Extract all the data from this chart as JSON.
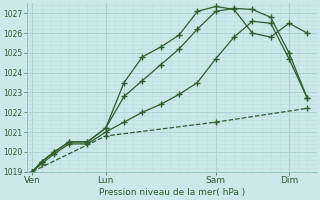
{
  "bg_color": "#cce8e8",
  "grid_major_color": "#aacfcf",
  "grid_minor_color": "#bbdddd",
  "line_color": "#2d5e2d",
  "text_color": "#2d5e2d",
  "xlabel_text": "Pression niveau de la mer( hPa )",
  "ylim": [
    1019.0,
    1027.5
  ],
  "yticks": [
    1019,
    1020,
    1021,
    1022,
    1023,
    1024,
    1025,
    1026,
    1027
  ],
  "xtick_labels": [
    "Ven",
    "Lun",
    "Sam",
    "Dim"
  ],
  "xtick_positions": [
    0,
    4,
    10,
    14
  ],
  "xlim": [
    -0.3,
    15.5
  ],
  "series": [
    {
      "x": [
        0,
        0.5,
        1.2,
        2,
        3,
        4,
        5,
        6,
        7,
        8,
        9,
        10,
        11,
        12,
        13,
        14,
        15
      ],
      "y": [
        1019.0,
        1019.5,
        1020.0,
        1020.5,
        1020.5,
        1021.2,
        1023.5,
        1024.8,
        1025.3,
        1025.9,
        1027.1,
        1027.35,
        1027.2,
        1026.0,
        1025.8,
        1026.5,
        1026.0
      ],
      "linestyle": "-",
      "marker": "+"
    },
    {
      "x": [
        0,
        0.5,
        1.2,
        2,
        3,
        4,
        5,
        6,
        7,
        8,
        9,
        10,
        11,
        12,
        13,
        14,
        15
      ],
      "y": [
        1019.0,
        1019.5,
        1020.0,
        1020.5,
        1020.5,
        1021.2,
        1022.8,
        1023.6,
        1024.4,
        1025.2,
        1026.2,
        1027.1,
        1027.25,
        1027.2,
        1026.8,
        1025.0,
        1022.7
      ],
      "linestyle": "-",
      "marker": "+"
    },
    {
      "x": [
        0,
        0.5,
        1.2,
        2,
        3,
        4,
        5,
        6,
        7,
        8,
        9,
        10,
        11,
        12,
        13,
        14,
        15
      ],
      "y": [
        1019.0,
        1019.4,
        1019.9,
        1020.4,
        1020.4,
        1021.0,
        1021.5,
        1022.0,
        1022.4,
        1022.9,
        1023.5,
        1024.7,
        1025.8,
        1026.6,
        1026.5,
        1024.7,
        1022.7
      ],
      "linestyle": "-",
      "marker": "+"
    },
    {
      "x": [
        0,
        4,
        10,
        15
      ],
      "y": [
        1019.0,
        1020.8,
        1021.5,
        1022.2
      ],
      "linestyle": "--",
      "marker": "+"
    }
  ]
}
